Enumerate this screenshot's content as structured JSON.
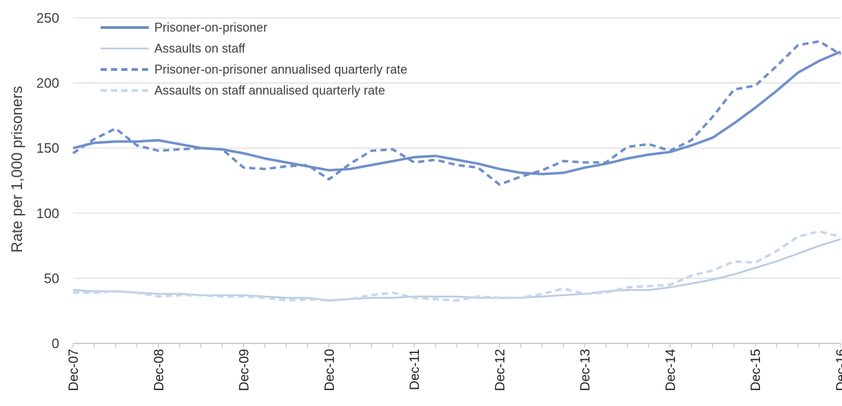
{
  "chart_data": {
    "type": "line",
    "title": "",
    "xlabel": "",
    "ylabel": "Rate per 1,000 prisoners",
    "ylim": [
      0,
      250
    ],
    "yticks": [
      0,
      50,
      100,
      150,
      200,
      250
    ],
    "grid": "horizontal",
    "legend_position": "top-left",
    "x_tick_labels": [
      "Dec-07",
      "Dec-08",
      "Dec-09",
      "Dec-10",
      "Dec-11",
      "Dec-12",
      "Dec-13",
      "Dec-14",
      "Dec-15",
      "Dec-16"
    ],
    "x": [
      "Dec-07",
      "Mar-08",
      "Jun-08",
      "Sep-08",
      "Dec-08",
      "Mar-09",
      "Jun-09",
      "Sep-09",
      "Dec-09",
      "Mar-10",
      "Jun-10",
      "Sep-10",
      "Dec-10",
      "Mar-11",
      "Jun-11",
      "Sep-11",
      "Dec-11",
      "Mar-12",
      "Jun-12",
      "Sep-12",
      "Dec-12",
      "Mar-13",
      "Jun-13",
      "Sep-13",
      "Dec-13",
      "Mar-14",
      "Jun-14",
      "Sep-14",
      "Dec-14",
      "Mar-15",
      "Jun-15",
      "Sep-15",
      "Dec-15",
      "Mar-16",
      "Jun-16",
      "Sep-16",
      "Dec-16"
    ],
    "series": [
      {
        "name": "Prisoner-on-prisoner",
        "color": "#6e8fc9",
        "style": "solid",
        "width": "thick",
        "values": [
          150,
          154,
          155,
          155,
          156,
          153,
          150,
          149,
          146,
          142,
          139,
          136,
          133,
          134,
          137,
          140,
          143,
          144,
          141,
          138,
          134,
          131,
          130,
          131,
          135,
          138,
          142,
          145,
          147,
          152,
          158,
          169,
          181,
          194,
          208,
          217,
          224
        ]
      },
      {
        "name": "Assaults on staff",
        "color": "#b9cbe6",
        "style": "solid",
        "width": "thin",
        "values": [
          41,
          40,
          40,
          39,
          38,
          38,
          37,
          37,
          37,
          36,
          35,
          35,
          33,
          34,
          35,
          35,
          36,
          36,
          36,
          35,
          35,
          35,
          36,
          37,
          38,
          40,
          41,
          41,
          43,
          46,
          49,
          53,
          58,
          63,
          69,
          75,
          80
        ]
      },
      {
        "name": "Prisoner-on-prisoner annualised quarterly rate",
        "color": "#6e8fc9",
        "style": "dashed",
        "width": "thick",
        "values": [
          146,
          157,
          165,
          152,
          148,
          149,
          150,
          149,
          135,
          134,
          136,
          137,
          126,
          138,
          148,
          149,
          139,
          141,
          137,
          135,
          122,
          128,
          133,
          140,
          139,
          139,
          151,
          153,
          148,
          156,
          174,
          195,
          198,
          213,
          229,
          232,
          222
        ]
      },
      {
        "name": "Assaults on staff annualised quarterly rate",
        "color": "#c7d6ec",
        "style": "dashed",
        "width": "thick",
        "values": [
          39,
          39,
          40,
          39,
          36,
          37,
          37,
          36,
          36,
          35,
          33,
          34,
          33,
          34,
          37,
          39,
          35,
          34,
          33,
          36,
          35,
          35,
          38,
          42,
          38,
          39,
          43,
          44,
          45,
          52,
          56,
          63,
          62,
          71,
          82,
          86,
          82
        ]
      }
    ]
  }
}
